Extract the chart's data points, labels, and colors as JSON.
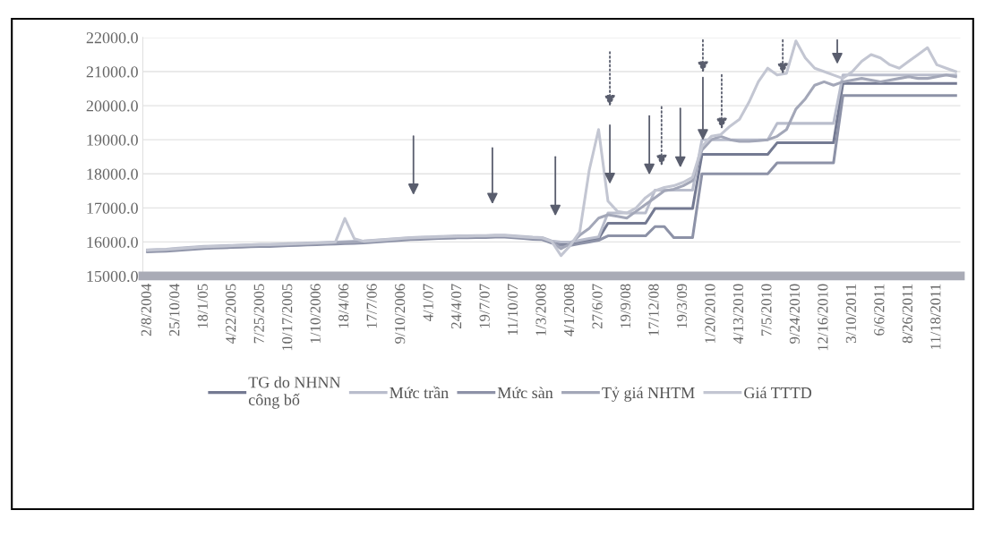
{
  "chart_data": {
    "type": "line",
    "categories": [
      "2/8/2004",
      null,
      null,
      "25/10/04",
      null,
      null,
      "18/1/05",
      null,
      null,
      "4/22/2005",
      null,
      null,
      "7/25/2005",
      null,
      null,
      "10/17/2005",
      null,
      null,
      "1/10/2006",
      null,
      null,
      "18/4/06",
      null,
      null,
      "17/7/06",
      null,
      null,
      "9/10/2006",
      null,
      null,
      "4/1/07",
      null,
      null,
      "24/4/07",
      null,
      null,
      "19/7/07",
      null,
      null,
      "11/10/07",
      null,
      null,
      "1/3/2008",
      null,
      null,
      "4/1/2008",
      null,
      null,
      "27/6/07",
      null,
      null,
      "19/9/08",
      null,
      null,
      "17/12/08",
      null,
      null,
      "19/3/09",
      null,
      null,
      "1/20/2010",
      null,
      null,
      "4/13/2010",
      null,
      null,
      "7/5/2010",
      null,
      null,
      "9/24/2010",
      null,
      null,
      "12/16/2010",
      null,
      null,
      "3/10/2011",
      null,
      null,
      "6/6/2011",
      null,
      null,
      "8/26/2011",
      null,
      null,
      "11/18/2011",
      null,
      null
    ],
    "series": [
      {
        "name": "TG do NHNN\ncông bố",
        "color": "#747a92",
        "values": [
          15740,
          15750,
          15760,
          15780,
          15800,
          15820,
          15840,
          15850,
          15860,
          15870,
          15880,
          15890,
          15900,
          15900,
          15910,
          15920,
          15930,
          15940,
          15950,
          15960,
          15970,
          15980,
          15990,
          16000,
          16020,
          16040,
          16060,
          16080,
          16100,
          16110,
          16120,
          16130,
          16140,
          16150,
          16150,
          16160,
          16160,
          16170,
          16170,
          16150,
          16130,
          16110,
          16100,
          16000,
          15950,
          15950,
          16000,
          16050,
          16100,
          16550,
          16550,
          16550,
          16550,
          16550,
          16980,
          16980,
          16980,
          16980,
          16980,
          18570,
          18570,
          18570,
          18570,
          18570,
          18570,
          18570,
          18570,
          18910,
          18910,
          18910,
          18910,
          18910,
          18910,
          18910,
          20650,
          20650,
          20650,
          20650,
          20650,
          20650,
          20650,
          20650,
          20650,
          20650,
          20650,
          20650,
          20650
        ]
      },
      {
        "name": "Mức trần",
        "color": "#b9bdcc",
        "values": [
          15770,
          15780,
          15790,
          15810,
          15830,
          15850,
          15870,
          15880,
          15890,
          15900,
          15910,
          15920,
          15930,
          15930,
          15940,
          15950,
          15960,
          15970,
          15980,
          15990,
          16000,
          16010,
          16020,
          16030,
          16050,
          16070,
          16090,
          16110,
          16130,
          16140,
          16150,
          16160,
          16170,
          16180,
          16180,
          16190,
          16190,
          16200,
          16200,
          16180,
          16160,
          16140,
          16130,
          16030,
          16000,
          16000,
          16050,
          16100,
          16150,
          16850,
          16850,
          16850,
          16850,
          16850,
          17520,
          17520,
          17520,
          17520,
          17520,
          19000,
          19000,
          19000,
          19000,
          19000,
          19000,
          19000,
          19000,
          19480,
          19480,
          19480,
          19480,
          19480,
          19480,
          19480,
          20900,
          20900,
          20900,
          20900,
          20900,
          20900,
          20900,
          20900,
          20900,
          20900,
          20900,
          20900,
          20900
        ]
      },
      {
        "name": "Mức sàn",
        "color": "#8d92a7",
        "values": [
          15710,
          15720,
          15730,
          15750,
          15770,
          15790,
          15810,
          15820,
          15830,
          15840,
          15850,
          15860,
          15870,
          15870,
          15880,
          15890,
          15900,
          15910,
          15920,
          15930,
          15940,
          15950,
          15960,
          15970,
          15990,
          16010,
          16030,
          16050,
          16070,
          16080,
          16090,
          16100,
          16110,
          16120,
          16120,
          16130,
          16130,
          16140,
          16140,
          16120,
          16100,
          16080,
          16070,
          15970,
          15900,
          15900,
          15950,
          16000,
          16050,
          16180,
          16180,
          16180,
          16180,
          16180,
          16450,
          16450,
          16130,
          16130,
          16130,
          18000,
          18000,
          18000,
          18000,
          18000,
          18000,
          18000,
          18000,
          18320,
          18320,
          18320,
          18320,
          18320,
          18320,
          18320,
          20300,
          20300,
          20300,
          20300,
          20300,
          20300,
          20300,
          20300,
          20300,
          20300,
          20300,
          20300,
          20300
        ]
      },
      {
        "name": "Tỷ giá NHTM",
        "color": "#a3a7b8",
        "values": [
          15750,
          15760,
          15770,
          15790,
          15810,
          15830,
          15850,
          15860,
          15870,
          15880,
          15890,
          15900,
          15910,
          15910,
          15920,
          15930,
          15940,
          15950,
          15960,
          15970,
          15980,
          15990,
          16000,
          16010,
          16030,
          16050,
          16070,
          16090,
          16110,
          16120,
          16130,
          16140,
          16150,
          16160,
          16160,
          16170,
          16170,
          16180,
          16180,
          16160,
          16140,
          16120,
          16110,
          16010,
          15800,
          15950,
          16200,
          16400,
          16700,
          16800,
          16750,
          16700,
          16900,
          17100,
          17300,
          17500,
          17550,
          17650,
          17800,
          18700,
          19000,
          19100,
          19000,
          18950,
          18950,
          18970,
          19000,
          19100,
          19300,
          19900,
          20200,
          20600,
          20700,
          20600,
          20700,
          20750,
          20800,
          20750,
          20700,
          20750,
          20800,
          20850,
          20800,
          20800,
          20850,
          20900,
          20850
        ]
      },
      {
        "name": "Giá TTTD",
        "color": "#c3c6d2",
        "values": [
          15760,
          15770,
          15780,
          15800,
          15820,
          15840,
          15860,
          15870,
          15880,
          15890,
          15900,
          15910,
          15920,
          15920,
          15930,
          15940,
          15950,
          15960,
          15970,
          15980,
          16000,
          16690,
          16100,
          16020,
          16040,
          16060,
          16080,
          16100,
          16120,
          16130,
          16140,
          16150,
          16160,
          16170,
          16170,
          16180,
          16180,
          16190,
          16190,
          16170,
          16150,
          16130,
          16120,
          16020,
          15600,
          15900,
          16300,
          18100,
          19300,
          17200,
          16900,
          16850,
          17000,
          17300,
          17500,
          17600,
          17650,
          17750,
          17900,
          18800,
          19100,
          19150,
          19400,
          19600,
          20100,
          20700,
          21100,
          20900,
          20950,
          21900,
          21400,
          21100,
          21000,
          20900,
          20800,
          21000,
          21300,
          21500,
          21400,
          21200,
          21100,
          21300,
          21500,
          21700,
          21200,
          21100,
          21000
        ]
      }
    ],
    "ylim": [
      15000,
      22000
    ],
    "yticks": [
      {
        "value": 15000,
        "label": "15000.0"
      },
      {
        "value": 16000,
        "label": "16000.0"
      },
      {
        "value": 17000,
        "label": "17000.0"
      },
      {
        "value": 18000,
        "label": "18000.0"
      },
      {
        "value": 19000,
        "label": "19000.0"
      },
      {
        "value": 20000,
        "label": "20000.0"
      },
      {
        "value": 21000,
        "label": "21000.0"
      },
      {
        "value": 22000,
        "label": "22000.0"
      }
    ],
    "grid": "y",
    "legend": "bottom",
    "marker": "none",
    "line_style": "solid"
  }
}
